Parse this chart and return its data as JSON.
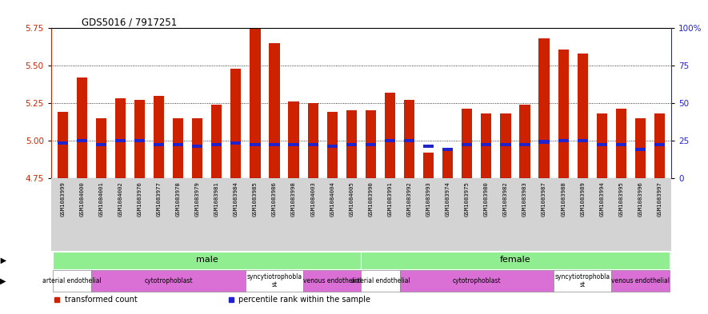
{
  "title": "GDS5016 / 7917251",
  "samples": [
    "GSM1083999",
    "GSM1084000",
    "GSM1084001",
    "GSM1084002",
    "GSM1083976",
    "GSM1083977",
    "GSM1083978",
    "GSM1083979",
    "GSM1083981",
    "GSM1083984",
    "GSM1083985",
    "GSM1083986",
    "GSM1083998",
    "GSM1084003",
    "GSM1084004",
    "GSM1084005",
    "GSM1083990",
    "GSM1083991",
    "GSM1083992",
    "GSM1083993",
    "GSM1083974",
    "GSM1083975",
    "GSM1083980",
    "GSM1083982",
    "GSM1083983",
    "GSM1083987",
    "GSM1083988",
    "GSM1083989",
    "GSM1083994",
    "GSM1083995",
    "GSM1083996",
    "GSM1083997"
  ],
  "red_values": [
    5.19,
    5.42,
    5.15,
    5.28,
    5.27,
    5.3,
    5.15,
    5.15,
    5.24,
    5.48,
    5.75,
    5.65,
    5.26,
    5.25,
    5.19,
    5.2,
    5.2,
    5.32,
    5.27,
    4.92,
    4.93,
    5.21,
    5.18,
    5.18,
    5.24,
    5.68,
    5.61,
    5.58,
    5.18,
    5.21,
    5.15,
    5.18
  ],
  "blue_values": [
    4.985,
    5.001,
    4.972,
    5.001,
    5.001,
    4.972,
    4.972,
    4.963,
    4.971,
    4.981,
    4.971,
    4.971,
    4.972,
    4.972,
    4.961,
    4.971,
    4.972,
    5.001,
    5.001,
    4.961,
    4.942,
    4.972,
    4.972,
    4.972,
    4.972,
    4.991,
    5.001,
    5.001,
    4.972,
    4.972,
    4.942,
    4.972
  ],
  "ymin": 4.75,
  "ymax": 5.75,
  "yticks_left": [
    4.75,
    5.0,
    5.25,
    5.5,
    5.75
  ],
  "yticks_right_vals": [
    0,
    25,
    50,
    75,
    100
  ],
  "yticks_right_labels": [
    "0",
    "25",
    "50",
    "75",
    "100%"
  ],
  "bar_color": "#cc2200",
  "blue_color": "#2222cc",
  "left_axis_color": "#cc2200",
  "right_axis_color": "#2222cc",
  "xlabel_bg": "#d3d3d3",
  "gender_color": "#90ee90",
  "gender_groups": [
    {
      "label": "male",
      "start": 0,
      "end": 15
    },
    {
      "label": "female",
      "start": 16,
      "end": 31
    }
  ],
  "cell_groups": [
    {
      "label": "arterial endothelial",
      "start": 0,
      "end": 1,
      "color": "#ffffff"
    },
    {
      "label": "cytotrophoblast",
      "start": 2,
      "end": 9,
      "color": "#da70d6"
    },
    {
      "label": "syncytiotrophobla\nst",
      "start": 10,
      "end": 12,
      "color": "#ffffff"
    },
    {
      "label": "venous endothelial",
      "start": 13,
      "end": 15,
      "color": "#da70d6"
    },
    {
      "label": "arterial endothelial",
      "start": 16,
      "end": 17,
      "color": "#ffffff"
    },
    {
      "label": "cytotrophoblast",
      "start": 18,
      "end": 25,
      "color": "#da70d6"
    },
    {
      "label": "syncytiotrophobla\nst",
      "start": 26,
      "end": 28,
      "color": "#ffffff"
    },
    {
      "label": "venous endothelial",
      "start": 29,
      "end": 31,
      "color": "#da70d6"
    }
  ],
  "legend": [
    {
      "color": "#cc2200",
      "label": "transformed count"
    },
    {
      "color": "#2222cc",
      "label": "percentile rank within the sample"
    }
  ],
  "figsize": [
    8.85,
    3.93
  ],
  "dpi": 100
}
